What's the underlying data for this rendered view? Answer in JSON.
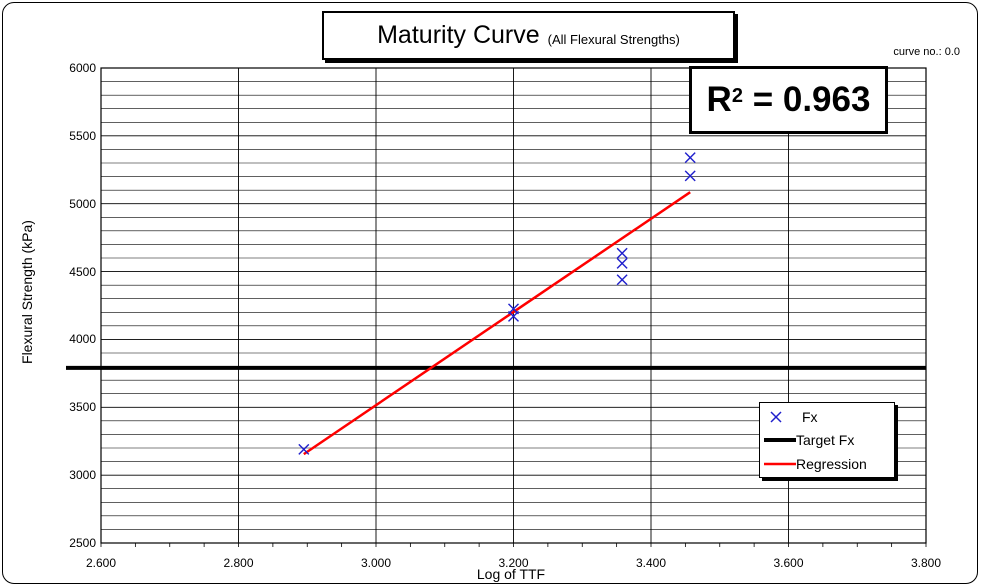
{
  "chart_data": {
    "type": "scatter",
    "title": "Maturity Curve",
    "subtitle": "(All Flexural Strengths)",
    "curve_label": "curve no.: 0.0",
    "r2_prefix": "R",
    "r2_exponent": "2",
    "r2_suffix": "= 0.963",
    "xlabel": "Log of TTF",
    "ylabel": "Flexural Strength (kPa)",
    "xlim": [
      2.6,
      3.8
    ],
    "ylim": [
      2500,
      6000
    ],
    "x_ticks": [
      "2.600",
      "2.800",
      "3.000",
      "3.200",
      "3.400",
      "3.600",
      "3.800"
    ],
    "y_ticks": [
      "2500",
      "3000",
      "3500",
      "4000",
      "4500",
      "5000",
      "5500",
      "6000"
    ],
    "y_minor_step": 100,
    "x_minor_step": 0.05,
    "grid": true,
    "legend_position": "bottom-right",
    "series": [
      {
        "name": "Fx",
        "kind": "scatter",
        "color": "#1f1fcc",
        "marker": "x",
        "points": [
          [
            2.895,
            3190
          ],
          [
            3.2,
            4225
          ],
          [
            3.2,
            4170
          ],
          [
            3.358,
            4635
          ],
          [
            3.358,
            4560
          ],
          [
            3.358,
            4440
          ],
          [
            3.457,
            5340
          ],
          [
            3.457,
            5205
          ]
        ]
      },
      {
        "name": "Target Fx",
        "kind": "hline",
        "color": "#000000",
        "y": 3790
      },
      {
        "name": "Regression",
        "kind": "line",
        "color": "#ff0000",
        "points": [
          [
            2.895,
            3155
          ],
          [
            3.457,
            5085
          ]
        ]
      }
    ]
  }
}
